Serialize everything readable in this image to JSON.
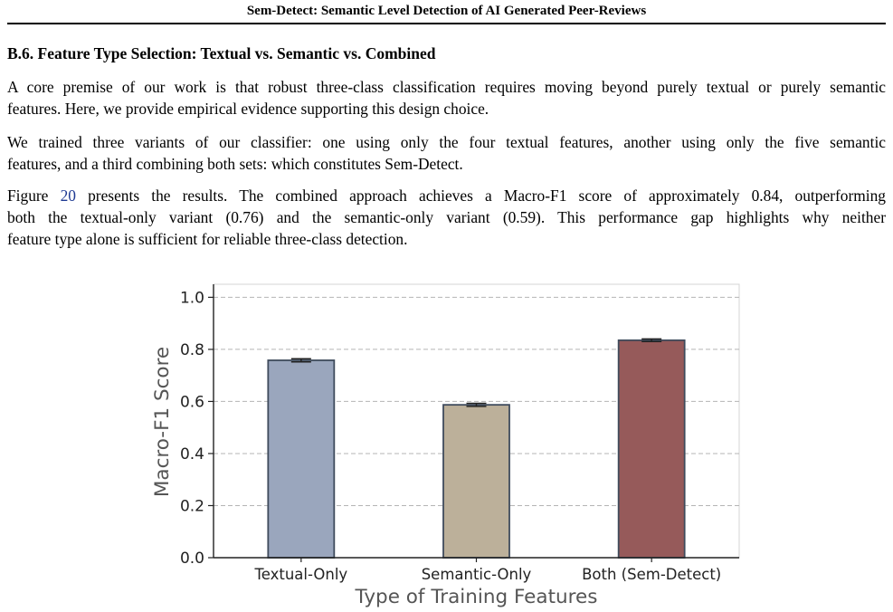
{
  "header": {
    "running_title": "Sem-Detect: Semantic Level Detection of AI Generated Peer-Reviews"
  },
  "section": {
    "title": "B.6. Feature Type Selection: Textual vs. Semantic vs. Combined"
  },
  "paragraphs": {
    "p1": [
      "A core premise of our work is that robust three-class classification requires moving beyond purely textual or purely semantic",
      "features. Here, we provide empirical evidence supporting this design choice."
    ],
    "p2": [
      "We trained three variants of our classifier: one using only the four textual features, another using only the five semantic",
      "features, and a third combining both sets: which constitutes Sem-Detect."
    ],
    "p3": {
      "line1_pre": "Figure ",
      "line1_ref": "20",
      "line1_post": " presents the results. The combined approach achieves a Macro-F1 score of approximately 0.84, outperforming",
      "line2": "both the textual-only variant (0.76) and the semantic-only variant (0.59). This performance gap highlights why neither",
      "line3": "feature type alone is sufficient for reliable three-class detection."
    }
  },
  "chart_data": {
    "type": "bar",
    "categories": [
      "Textual-Only",
      "Semantic-Only",
      "Both (Sem-Detect)"
    ],
    "values": [
      0.758,
      0.587,
      0.835
    ],
    "errors": [
      0.006,
      0.006,
      0.005
    ],
    "colors": [
      "#9aa6bd",
      "#bcb09a",
      "#965a5a"
    ],
    "edge_color": "#3f4b5c",
    "xlabel": "Type of Training Features",
    "ylabel": "Macro-F1 Score",
    "ylim": [
      0.0,
      1.05
    ],
    "yticks": [
      "0.0",
      "0.2",
      "0.4",
      "0.6",
      "0.8",
      "1.0"
    ],
    "ytick_values": [
      0.0,
      0.2,
      0.4,
      0.6,
      0.8,
      1.0
    ],
    "grid": true
  }
}
